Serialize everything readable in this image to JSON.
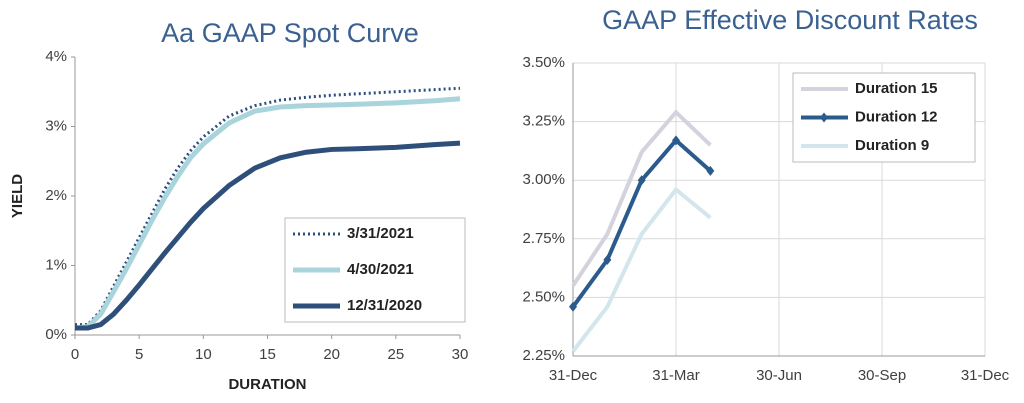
{
  "chart_data": [
    {
      "type": "line",
      "title": "Aa GAAP Spot Curve",
      "x_label": "DURATION",
      "y_label": "YIELD",
      "x": [
        0,
        1,
        2,
        3,
        4,
        5,
        6,
        7,
        8,
        9,
        10,
        12,
        14,
        16,
        18,
        20,
        22,
        25,
        28,
        30
      ],
      "series": [
        {
          "name": "3/31/2021",
          "color": "#2b4f7e",
          "style": "dotted",
          "values": [
            0.15,
            0.15,
            0.35,
            0.7,
            1.05,
            1.4,
            1.75,
            2.1,
            2.4,
            2.65,
            2.85,
            3.15,
            3.3,
            3.38,
            3.42,
            3.45,
            3.47,
            3.5,
            3.53,
            3.55
          ]
        },
        {
          "name": "4/30/2021",
          "color": "#a9d4dc",
          "style": "solid",
          "values": [
            0.1,
            0.12,
            0.3,
            0.62,
            0.95,
            1.3,
            1.65,
            1.98,
            2.28,
            2.55,
            2.75,
            3.05,
            3.22,
            3.28,
            3.3,
            3.31,
            3.32,
            3.34,
            3.37,
            3.4
          ]
        },
        {
          "name": "12/31/2020",
          "color": "#2e4f7a",
          "style": "solid",
          "values": [
            0.1,
            0.1,
            0.15,
            0.3,
            0.5,
            0.72,
            0.95,
            1.18,
            1.4,
            1.62,
            1.82,
            2.15,
            2.4,
            2.55,
            2.63,
            2.67,
            2.68,
            2.7,
            2.74,
            2.76
          ]
        }
      ],
      "xlim": [
        0,
        30
      ],
      "xticks": [
        0,
        5,
        10,
        15,
        20,
        25,
        30
      ],
      "ylim": [
        0,
        4
      ],
      "yticks": [
        {
          "value": 0,
          "label": "0%"
        },
        {
          "value": 1,
          "label": "1%"
        },
        {
          "value": 2,
          "label": "2%"
        },
        {
          "value": 3,
          "label": "3%"
        },
        {
          "value": 4,
          "label": "4%"
        }
      ],
      "grid": false,
      "legend": "lower right"
    },
    {
      "type": "line",
      "title": "GAAP Effective Discount Rates",
      "x": [
        0,
        1,
        2,
        3,
        4
      ],
      "series": [
        {
          "name": "Duration 15",
          "color": "#d3d2dd",
          "style": "solid",
          "values": [
            2.55,
            2.77,
            3.12,
            3.29,
            3.15
          ]
        },
        {
          "name": "Duration 12",
          "color": "#2b5a8c",
          "style": "solid",
          "marker": "diamond",
          "values": [
            2.46,
            2.66,
            3.0,
            3.17,
            3.04
          ]
        },
        {
          "name": "Duration 9",
          "color": "#d3e6ec",
          "style": "solid",
          "values": [
            2.27,
            2.46,
            2.77,
            2.96,
            2.84
          ]
        }
      ],
      "xlim": [
        0,
        12
      ],
      "xticks": [
        {
          "value": 0,
          "label": "31-Dec"
        },
        {
          "value": 3,
          "label": "31-Mar"
        },
        {
          "value": 6,
          "label": "30-Jun"
        },
        {
          "value": 9,
          "label": "30-Sep"
        },
        {
          "value": 12,
          "label": "31-Dec"
        }
      ],
      "ylim": [
        2.25,
        3.5
      ],
      "yticks": [
        {
          "value": 2.25,
          "label": "2.25%"
        },
        {
          "value": 2.5,
          "label": "2.50%"
        },
        {
          "value": 2.75,
          "label": "2.75%"
        },
        {
          "value": 3,
          "label": "3.00%"
        },
        {
          "value": 3.25,
          "label": "3.25%"
        },
        {
          "value": 3.5,
          "label": "3.50%"
        }
      ],
      "grid": true,
      "legend": "upper right"
    }
  ]
}
